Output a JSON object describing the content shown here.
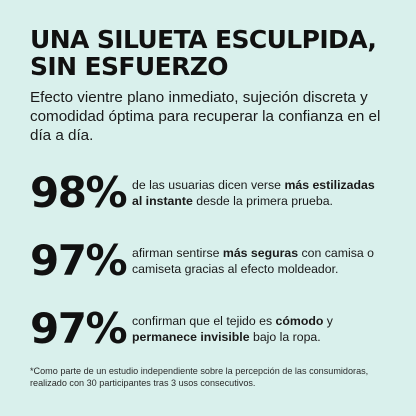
{
  "headline": {
    "line1": "UNA SILUETA ESCULPIDA,",
    "line2": "SIN ESFUERZO"
  },
  "intro": "Efecto vientre plano inmediato, sujeción discreta y comodidad óptima para recuperar la confianza en el día a día.",
  "stats": [
    {
      "value": "98%",
      "text_before": "de las usuarias dicen verse ",
      "text_bold": "más estilizadas al instante",
      "text_after": " desde la primera prueba."
    },
    {
      "value": "97%",
      "text_before": "afirman sentirse ",
      "text_bold": "más seguras",
      "text_after": " con camisa o camiseta gracias al efecto moldeador."
    },
    {
      "value": "97%",
      "text_before": "confirman que el tejido es ",
      "text_bold": "cómodo",
      "text_middle": " y ",
      "text_bold2": "permanece invisible",
      "text_after": " bajo la ropa."
    }
  ],
  "footnote": "*Como parte de un estudio independiente sobre la percepción de las consumidoras, realizado con 30 participantes tras 3 usos consecutivos.",
  "colors": {
    "background": "#d9f0ec",
    "text": "#111111"
  }
}
